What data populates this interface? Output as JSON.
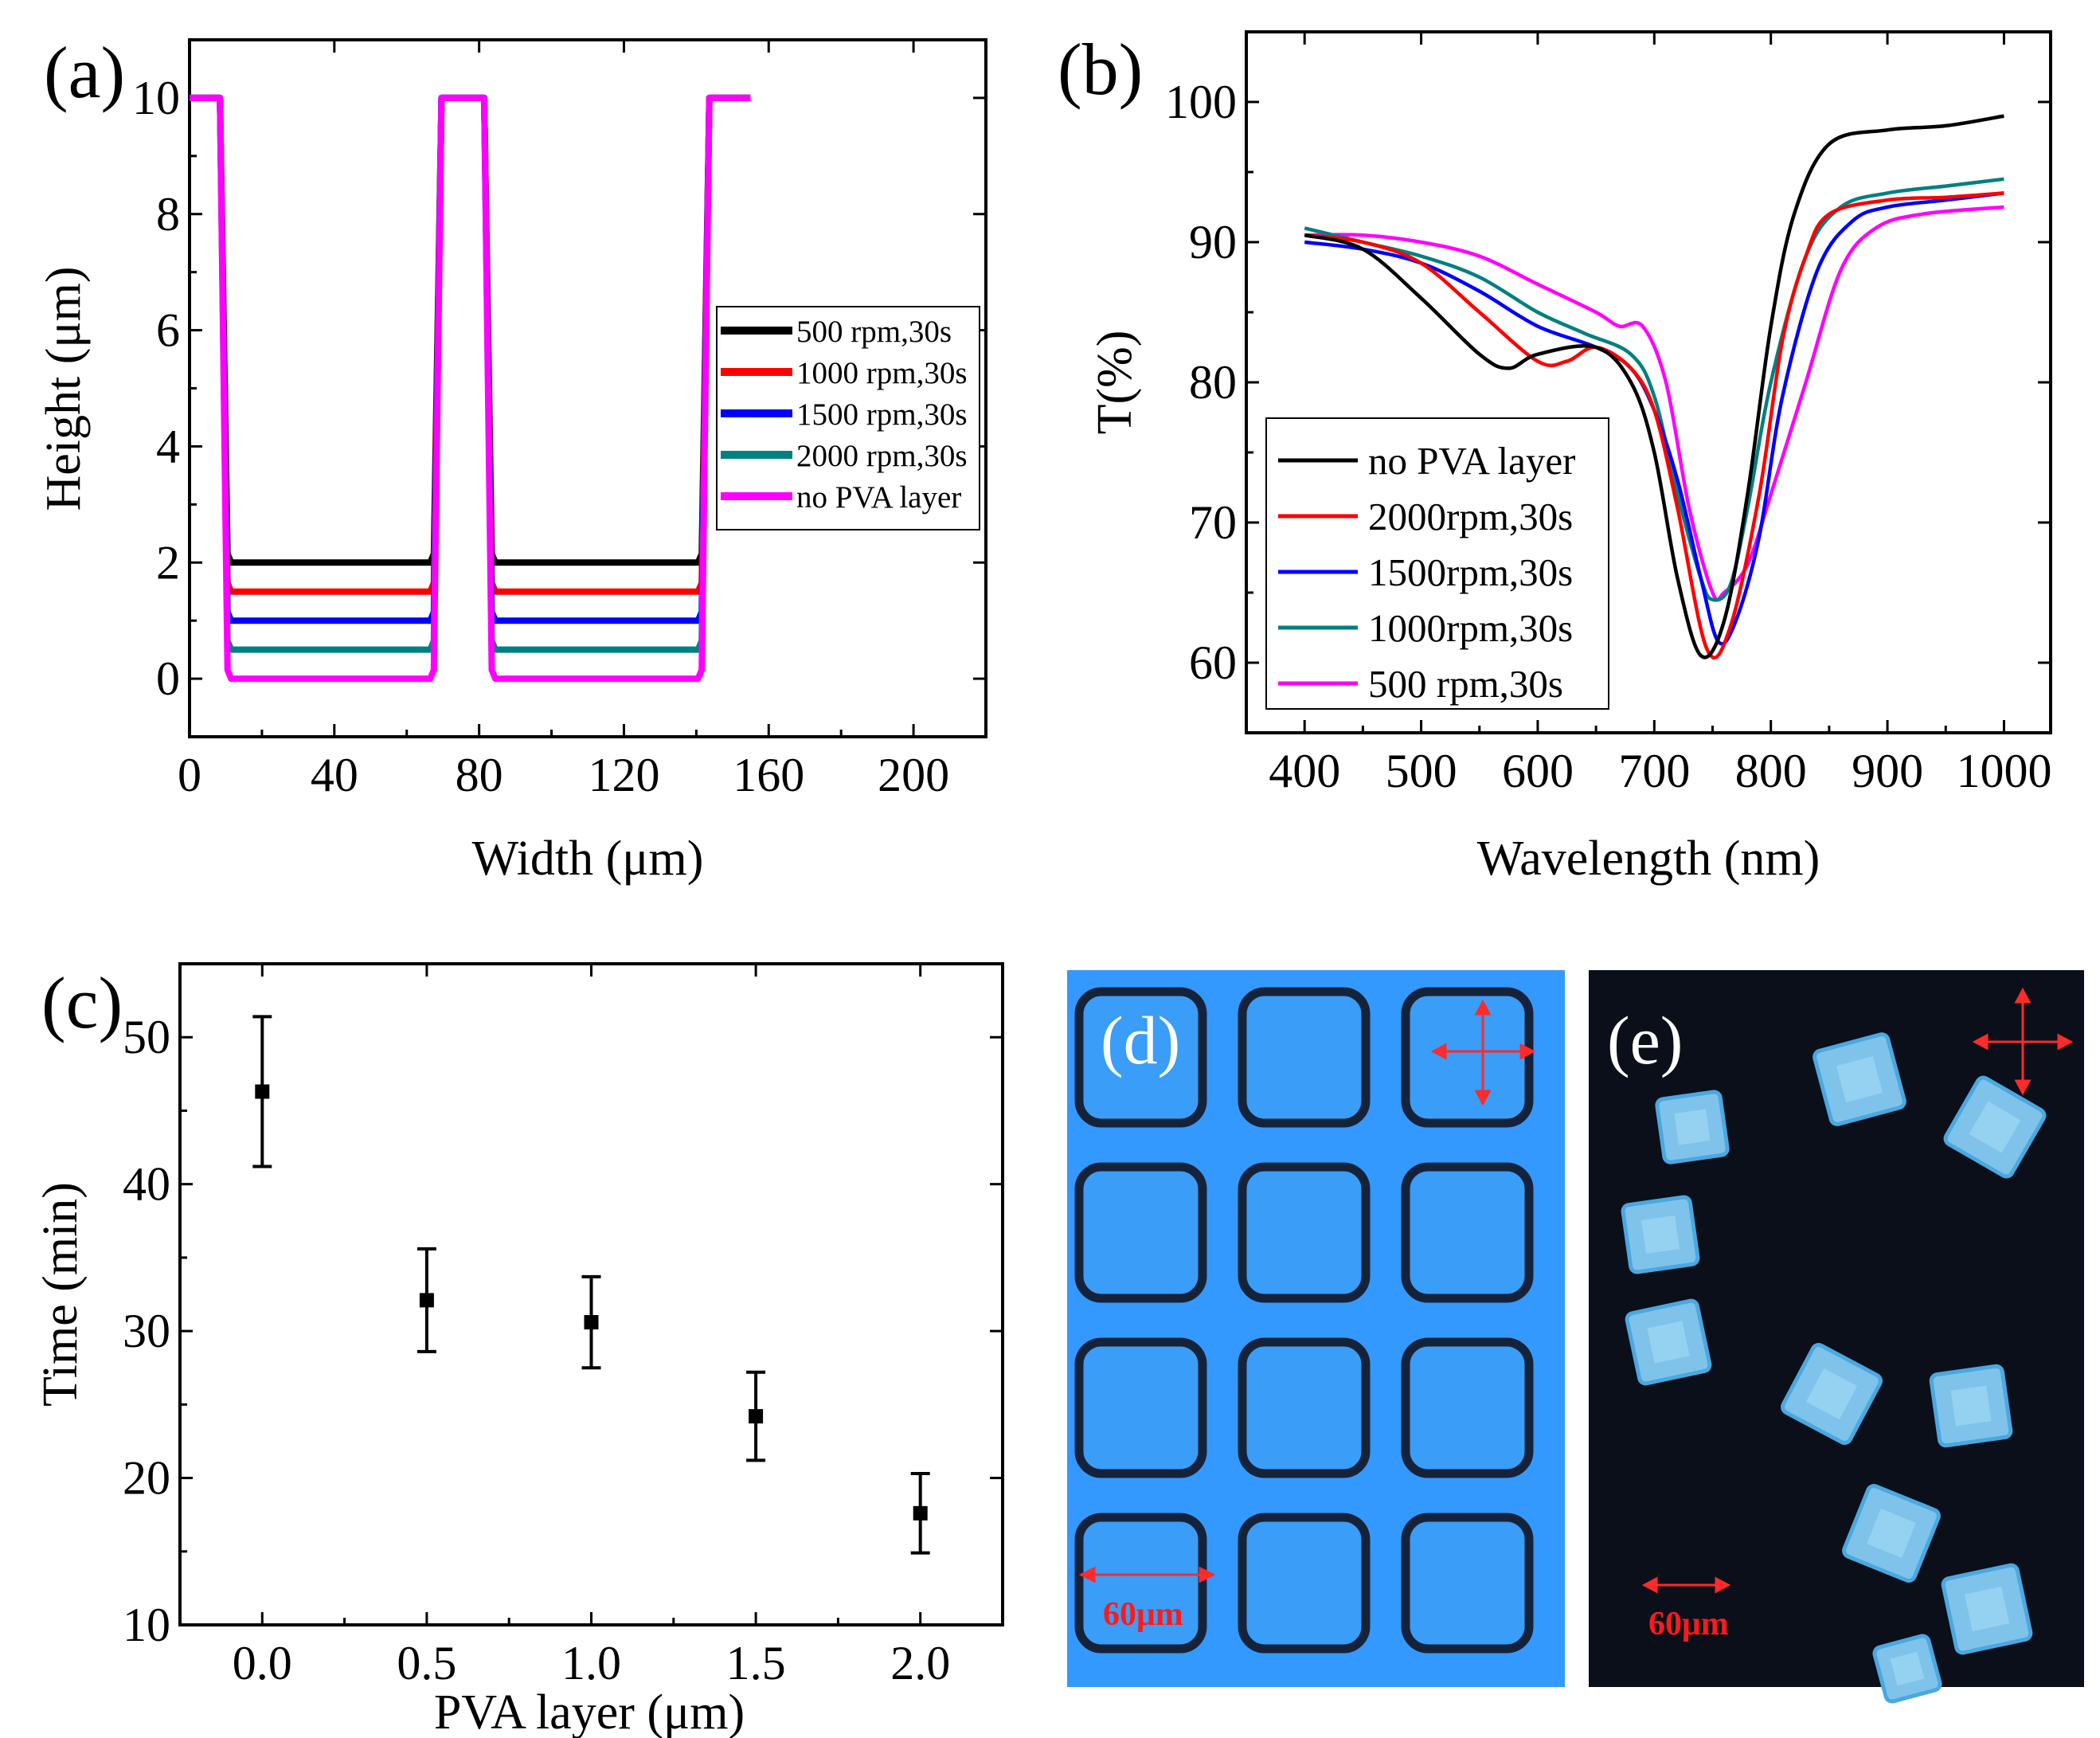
{
  "panels": {
    "a": "(a)",
    "b": "(b)",
    "c": "(c)",
    "d": "(d)",
    "e": "(e)"
  },
  "chart_data": [
    {
      "id": "a",
      "type": "line",
      "xlabel": "Width (μm)",
      "ylabel": "Height (μm)",
      "xlim": [
        0,
        220
      ],
      "ylim": [
        -1,
        11
      ],
      "xticks": [
        0,
        40,
        80,
        120,
        160,
        200
      ],
      "yticks": [
        0,
        2,
        4,
        6,
        8,
        10
      ],
      "legend_position": "center-right",
      "series": [
        {
          "name": "500   rpm,30s",
          "color": "#000000",
          "trench_height": 2.0
        },
        {
          "name": "1000 rpm,30s",
          "color": "#ff0000",
          "trench_height": 1.5
        },
        {
          "name": "1500 rpm,30s",
          "color": "#0000ff",
          "trench_height": 1.0
        },
        {
          "name": "2000 rpm,30s",
          "color": "#008080",
          "trench_height": 0.5
        },
        {
          "name": "no PVA layer",
          "color": "#ff00ff",
          "trench_height": 0.0
        }
      ],
      "profile": {
        "x_start": 0,
        "x_end": 155,
        "top_height": 10,
        "trenches": [
          [
            9,
            69
          ],
          [
            82,
            143
          ]
        ]
      }
    },
    {
      "id": "b",
      "type": "line",
      "xlabel": "Wavelength (nm)",
      "ylabel": "T(%)",
      "xlim": [
        350,
        1040
      ],
      "ylim": [
        55,
        105
      ],
      "xticks": [
        400,
        500,
        600,
        700,
        800,
        900,
        1000
      ],
      "yticks": [
        60,
        70,
        80,
        90,
        100
      ],
      "legend_position": "bottom-left",
      "series": [
        {
          "name": "no PVA layer",
          "color": "#000000",
          "x": [
            400,
            450,
            500,
            550,
            575,
            600,
            650,
            680,
            700,
            720,
            740,
            760,
            780,
            800,
            820,
            850,
            900,
            950,
            1000
          ],
          "y": [
            90.5,
            89.5,
            86,
            82,
            81,
            82,
            82.5,
            80,
            75,
            66,
            60.5,
            63,
            72,
            84,
            92,
            97,
            98,
            98.3,
            99
          ]
        },
        {
          "name": "2000rpm,30s",
          "color": "#ff0000",
          "x": [
            400,
            450,
            500,
            550,
            600,
            625,
            650,
            680,
            700,
            720,
            745,
            765,
            790,
            810,
            830,
            850,
            900,
            950,
            1000
          ],
          "y": [
            90.5,
            90,
            88.5,
            85,
            81.5,
            81.5,
            82.5,
            81,
            78,
            71,
            61,
            62.5,
            72,
            83,
            89,
            92,
            93,
            93.2,
            93.5
          ]
        },
        {
          "name": "1500rpm,30s",
          "color": "#0000ff",
          "x": [
            400,
            450,
            500,
            550,
            600,
            650,
            680,
            700,
            720,
            740,
            755,
            770,
            790,
            810,
            840,
            870,
            900,
            950,
            1000
          ],
          "y": [
            90,
            89.5,
            88.5,
            86.5,
            84,
            82.5,
            81,
            78,
            73,
            66,
            61.5,
            63,
            69,
            79,
            88,
            91.5,
            92.5,
            93,
            93.5
          ]
        },
        {
          "name": "1000rpm,30s",
          "color": "#008080",
          "x": [
            400,
            450,
            500,
            550,
            600,
            640,
            680,
            700,
            720,
            740,
            750,
            765,
            780,
            800,
            830,
            860,
            900,
            950,
            1000
          ],
          "y": [
            91,
            90,
            89,
            87.5,
            85,
            83.5,
            82,
            79,
            72,
            66,
            64.5,
            65.5,
            71,
            80,
            89,
            92.5,
            93.5,
            94,
            94.5
          ]
        },
        {
          "name": "500  rpm,30s",
          "color": "#ff00ff",
          "x": [
            400,
            450,
            500,
            550,
            600,
            650,
            670,
            690,
            710,
            730,
            750,
            760,
            780,
            800,
            830,
            860,
            890,
            930,
            1000
          ],
          "y": [
            90.5,
            90.5,
            90,
            89,
            87,
            85,
            84,
            84,
            80,
            71,
            65,
            65,
            67,
            72,
            80,
            88,
            91,
            92,
            92.5
          ]
        }
      ]
    },
    {
      "id": "c",
      "type": "scatter",
      "xlabel": "PVA layer (μm)",
      "ylabel": "Time (min)",
      "xlim": [
        -0.25,
        2.25
      ],
      "ylim": [
        10,
        55
      ],
      "xticks": [
        "0.0",
        "0.5",
        "1.0",
        "1.5",
        "2.0"
      ],
      "yticks": [
        10,
        20,
        30,
        40,
        50
      ],
      "series": [
        {
          "name": "Time",
          "color": "#000000",
          "x": [
            0.0,
            0.5,
            1.0,
            1.5,
            2.0
          ],
          "y": [
            46.3,
            32.1,
            30.6,
            24.2,
            17.6
          ],
          "err": [
            5.1,
            3.5,
            3.1,
            3.0,
            2.7
          ]
        }
      ]
    }
  ],
  "images": {
    "d": {
      "label": "(d)",
      "scale_label": "60μm",
      "background": "#3399ff",
      "rows": 4,
      "cols": 3
    },
    "e": {
      "label": "(e)",
      "scale_label": "60μm",
      "background": "#0b0f1a"
    }
  },
  "colors": {
    "scale_arrow": "#ff1a1a",
    "crystal": "#7fc3ea"
  }
}
